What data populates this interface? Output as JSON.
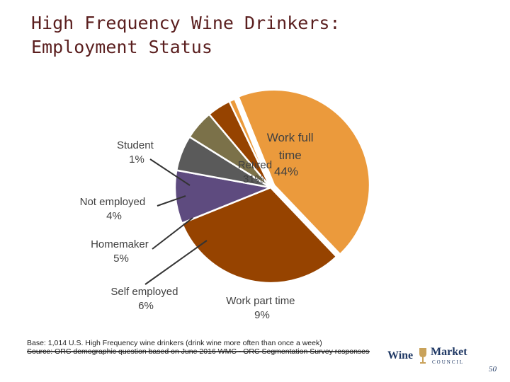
{
  "title_lines": [
    "High Frequency Wine Drinkers:",
    "Employment Status"
  ],
  "chart_data": {
    "type": "pie",
    "title": "High Frequency Wine Drinkers: Employment Status",
    "slices": [
      {
        "label": "Work full time",
        "value": 44,
        "display": "44%",
        "color": "#eb9a3c"
      },
      {
        "label": "Retired",
        "value": 31,
        "display": "31%",
        "color": "#964300"
      },
      {
        "label": "Work part time",
        "value": 9,
        "display": "9%",
        "color": "#5e4b7f"
      },
      {
        "label": "Self employed",
        "value": 6,
        "display": "6%",
        "color": "#5a5a5a"
      },
      {
        "label": "Homemaker",
        "value": 5,
        "display": "5%",
        "color": "#7b7149"
      },
      {
        "label": "Not employed",
        "value": 4,
        "display": "4%",
        "color": "#964300"
      },
      {
        "label": "Student",
        "value": 1,
        "display": "1%",
        "color": "#eb9a3c"
      }
    ]
  },
  "labels": {
    "work_full": [
      "Work full",
      "time",
      "44%"
    ],
    "retired": [
      "Retired",
      "31%"
    ],
    "part_time": [
      "Work part time",
      "9%"
    ],
    "self_employed": [
      "Self employed",
      "6%"
    ],
    "homemaker": [
      "Homemaker",
      "5%"
    ],
    "not_employed": [
      "Not employed",
      "4%"
    ],
    "student": [
      "Student",
      "1%"
    ]
  },
  "footer": {
    "base": "Base: 1,014 U.S. High Frequency wine drinkers (drink wine more often than once a week)",
    "source": "Source: ORC demographic question based on June 2016 WMC - ORC Segmentation Survey responses"
  },
  "logo": {
    "wine": "Wine",
    "market": "Market",
    "council": "COUNCIL"
  },
  "page_number": "50"
}
